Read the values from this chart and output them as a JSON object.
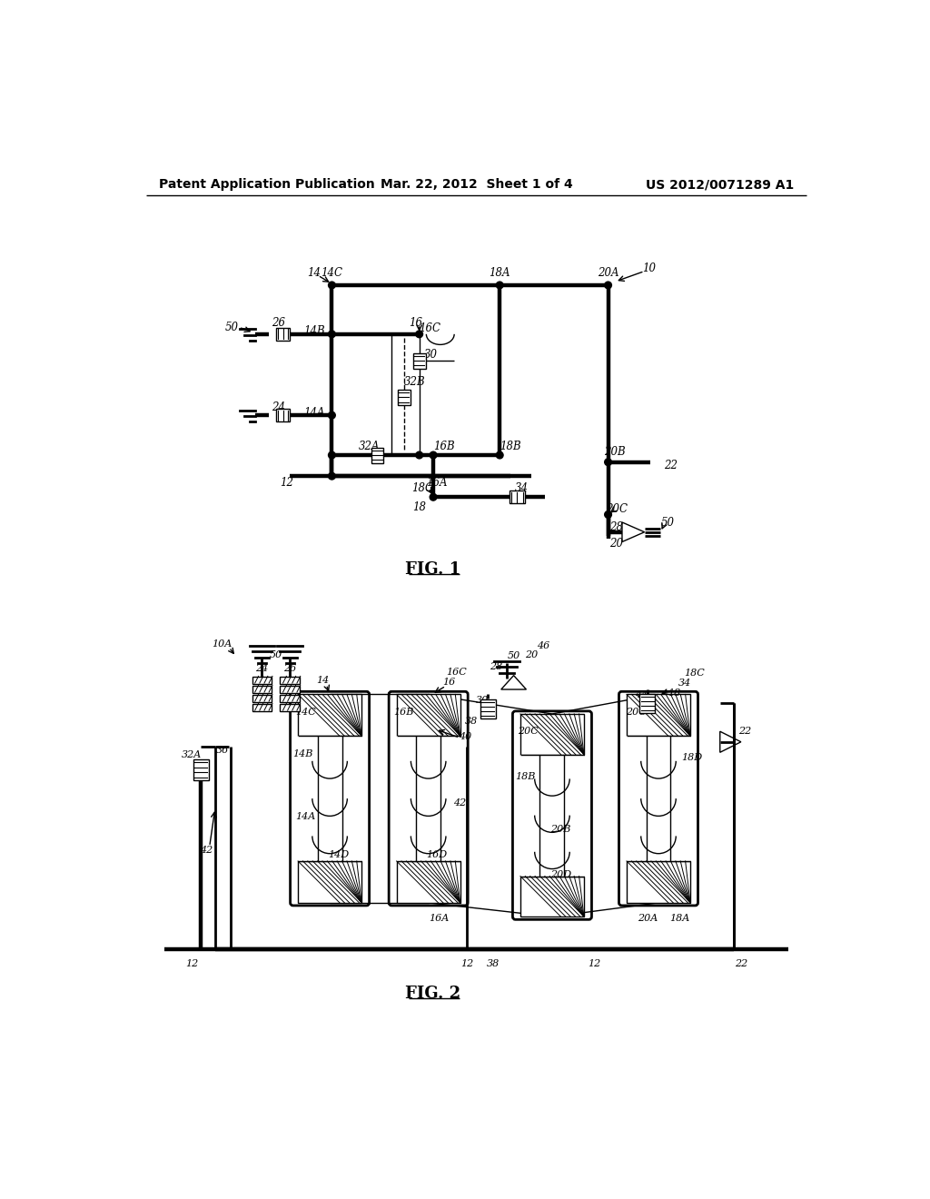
{
  "bg_color": "#ffffff",
  "header_left": "Patent Application Publication",
  "header_center": "Mar. 22, 2012  Sheet 1 of 4",
  "header_right": "US 2012/0071289 A1"
}
